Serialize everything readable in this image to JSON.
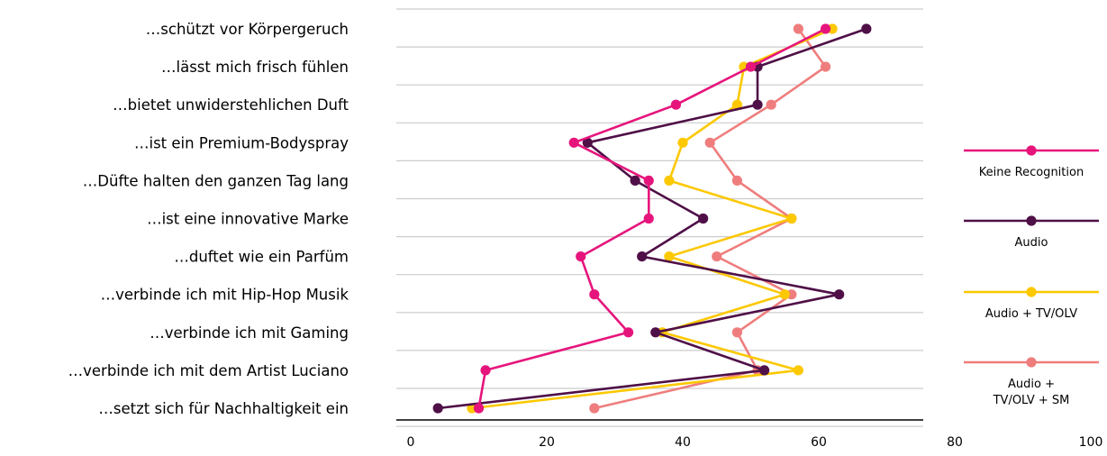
{
  "chart_data": {
    "type": "line",
    "orientation": "horizontal",
    "categories": [
      "…schützt vor Körpergeruch",
      "…lässt mich frisch fühlen",
      "…bietet unwiderstehlichen Duft",
      "…ist ein Premium-Bodyspray",
      "…Düfte halten den ganzen Tag lang",
      "…ist eine innovative Marke",
      "…duftet wie ein Parfüm",
      "…verbinde ich mit Hip-Hop Musik",
      "…verbinde ich mit Gaming",
      "…verbinde ich mit dem Artist Luciano",
      "…setzt sich für Nachhaltigkeit ein"
    ],
    "series": [
      {
        "name": "Keine Recognition",
        "color": "#e6157c",
        "values": [
          61,
          50,
          39,
          24,
          35,
          35,
          25,
          27,
          32,
          11,
          10
        ]
      },
      {
        "name": "Audio",
        "color": "#4f0f47",
        "values": [
          67,
          51,
          51,
          26,
          33,
          43,
          34,
          63,
          36,
          52,
          4
        ]
      },
      {
        "name": "Audio + TV/OLV",
        "color": "#fcc800",
        "values": [
          62,
          49,
          48,
          40,
          38,
          56,
          38,
          55,
          37,
          57,
          9
        ]
      },
      {
        "name": "Audio + TV/OLV + SM",
        "color": "#ef7d7d",
        "values": [
          57,
          61,
          53,
          44,
          48,
          56,
          45,
          56,
          48,
          51,
          27
        ]
      }
    ],
    "x_ticks": [
      "0",
      "20",
      "40",
      "60",
      "80",
      "100"
    ],
    "xlim": [
      0,
      100
    ],
    "grid": true,
    "legend": {
      "placement": "right",
      "labels": [
        "Keine Recognition",
        "Audio",
        "Audio + TV/OLV",
        "Audio + TV/OLV + SM"
      ]
    },
    "legend_lines": [
      [
        "Keine Recognition"
      ],
      [
        "Audio"
      ],
      [
        "Audio + TV/OLV"
      ],
      [
        "Audio +",
        "TV/OLV + SM"
      ]
    ]
  }
}
